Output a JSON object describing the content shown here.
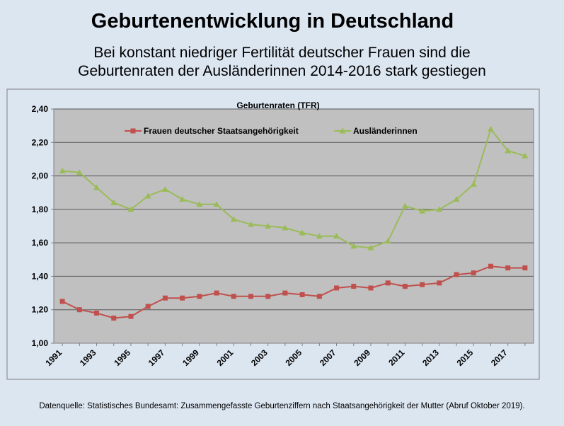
{
  "page": {
    "title": "Geburtenentwicklung in Deutschland",
    "subtitle_line1": "Bei konstant niedriger Fertilität deutscher Frauen sind die",
    "subtitle_line2": "Geburtenraten der Ausländerinnen 2014-2016 stark gestiegen",
    "source": "Datenquelle: Statistisches Bundesamt: Zusammengefasste Geburtenziffern nach Staatsangehörigkeit der Mutter (Abruf Oktober 2019)."
  },
  "chart_data": {
    "type": "line",
    "title": "Geburtenraten (TFR)",
    "xlabel": "",
    "ylabel": "",
    "ylim": [
      1.0,
      2.4
    ],
    "y_ticks": [
      "1,00",
      "1,20",
      "1,40",
      "1,60",
      "1,80",
      "2,00",
      "2,20",
      "2,40"
    ],
    "x_tick_labels": [
      "1991",
      "1993",
      "1995",
      "1997",
      "1999",
      "2001",
      "2003",
      "2005",
      "2007",
      "2009",
      "2011",
      "2013",
      "2015",
      "2017"
    ],
    "grid": "horizontal",
    "legend_position": "top",
    "x": [
      1991,
      1992,
      1993,
      1994,
      1995,
      1996,
      1997,
      1998,
      1999,
      2000,
      2001,
      2002,
      2003,
      2004,
      2005,
      2006,
      2007,
      2008,
      2009,
      2010,
      2011,
      2012,
      2013,
      2014,
      2015,
      2016,
      2017,
      2018
    ],
    "series": [
      {
        "name": "Frauen deutscher Staatsangehörigkeit",
        "color": "#c0504d",
        "marker": "square",
        "values": [
          1.25,
          1.2,
          1.18,
          1.15,
          1.16,
          1.22,
          1.27,
          1.27,
          1.28,
          1.3,
          1.28,
          1.28,
          1.28,
          1.3,
          1.29,
          1.28,
          1.33,
          1.34,
          1.33,
          1.36,
          1.34,
          1.35,
          1.36,
          1.41,
          1.42,
          1.46,
          1.45,
          1.45
        ]
      },
      {
        "name": "Ausländerinnen",
        "color": "#9bbb59",
        "marker": "triangle",
        "values": [
          2.03,
          2.02,
          1.93,
          1.84,
          1.8,
          1.88,
          1.92,
          1.86,
          1.83,
          1.83,
          1.74,
          1.71,
          1.7,
          1.69,
          1.66,
          1.64,
          1.64,
          1.58,
          1.57,
          1.61,
          1.82,
          1.79,
          1.8,
          1.86,
          1.95,
          2.28,
          2.15,
          2.12
        ]
      }
    ],
    "colors": {
      "plot_background": "#c0c0c0",
      "page_background": "#dce6f1",
      "gridline": "#595959"
    }
  }
}
